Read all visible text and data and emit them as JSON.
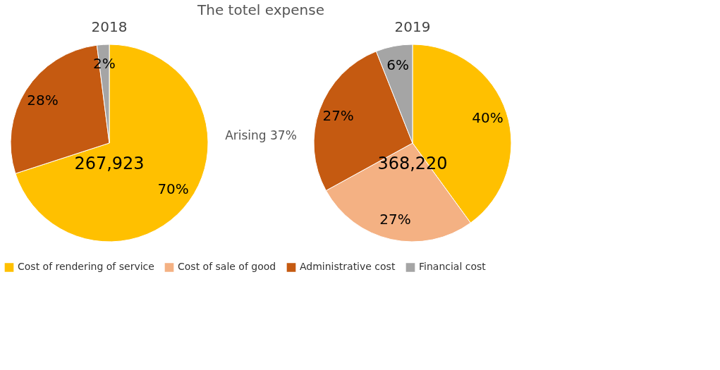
{
  "chart_data": {
    "type": "pie",
    "title": "The totel expense",
    "categories": [
      "Cost of rendering of service",
      "Cost of sale of good",
      "Administrative cost",
      "Financial cost"
    ],
    "colors": [
      "#ffc000",
      "#f4b183",
      "#c55a11",
      "#a5a5a5"
    ],
    "series": [
      {
        "name": "2018",
        "values": [
          70,
          0,
          28,
          2
        ],
        "value_labels": [
          "70%",
          null,
          "28%",
          "2%"
        ]
      },
      {
        "name": "2019",
        "values": [
          40,
          27,
          27,
          6
        ],
        "value_labels": [
          "40%",
          "27%",
          "27%",
          "6%"
        ]
      }
    ],
    "legend": "bottom",
    "annotations": [
      "267,923",
      "Arising 37%",
      "368,220"
    ]
  }
}
